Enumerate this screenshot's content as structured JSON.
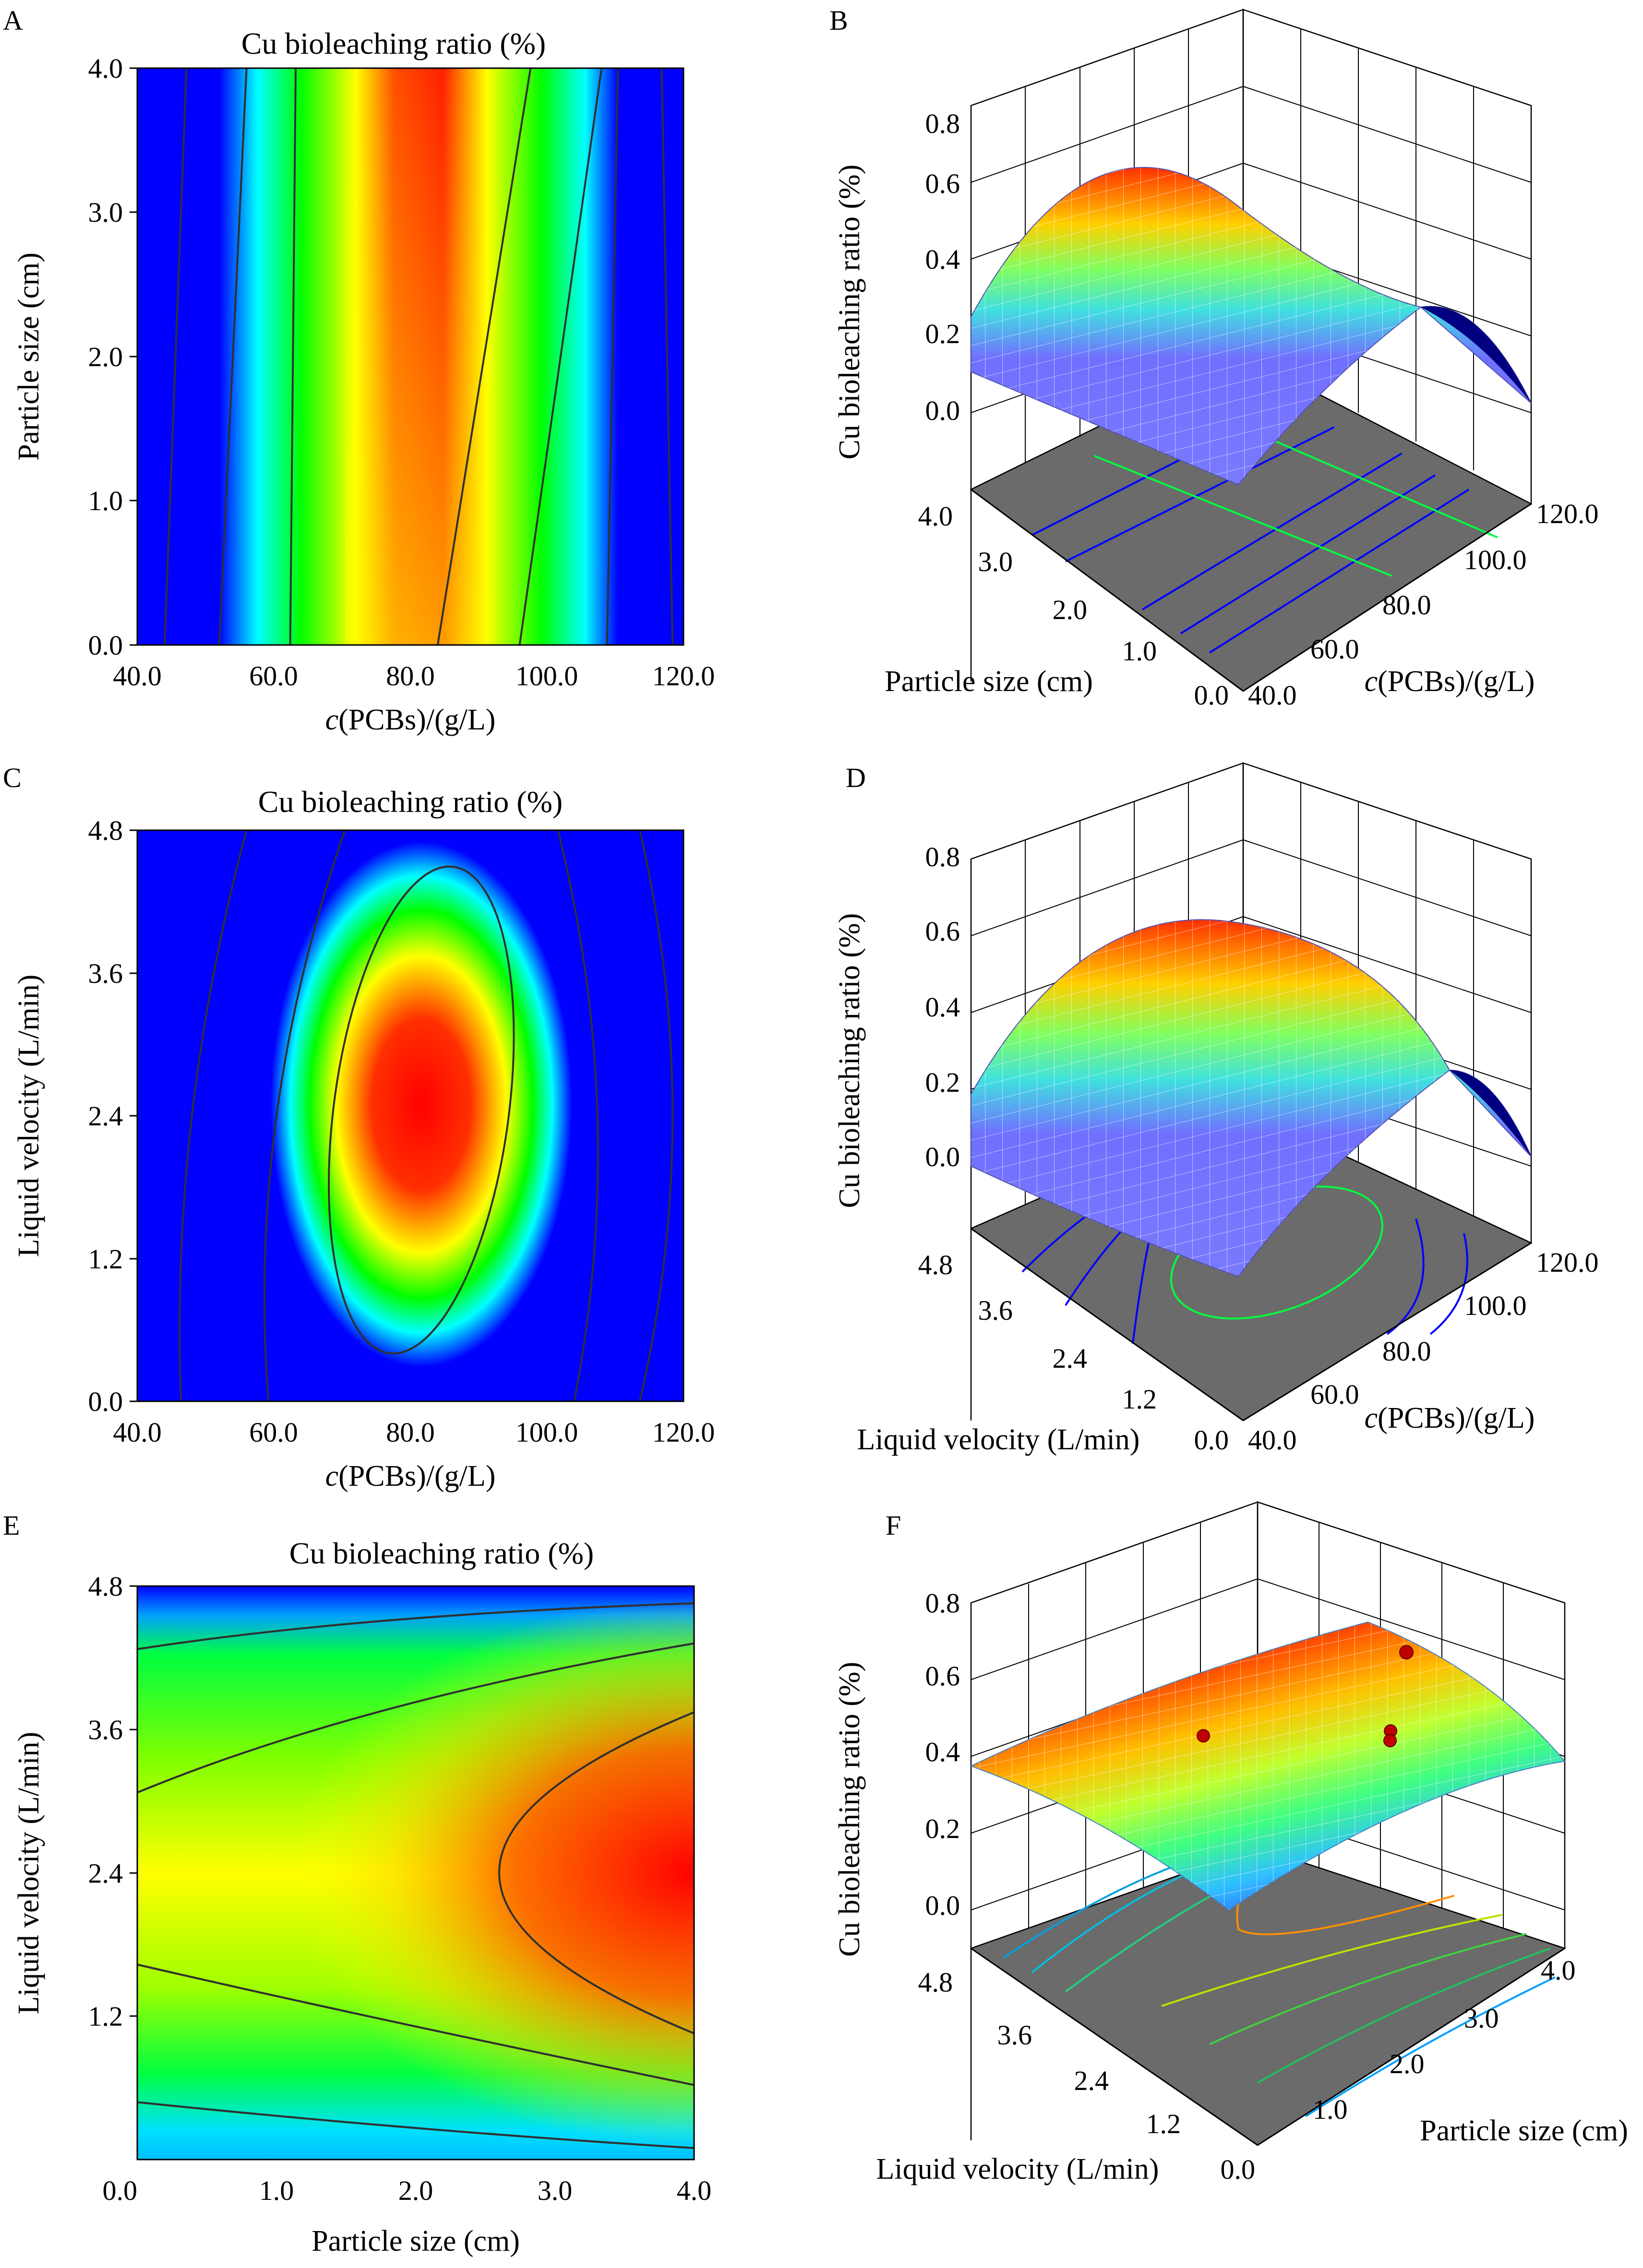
{
  "figure": {
    "panels": [
      "A",
      "B",
      "C",
      "D",
      "E",
      "F"
    ]
  },
  "colormap": [
    "#0000ff",
    "#00ffff",
    "#00ff00",
    "#ffff00",
    "#ff0000"
  ],
  "surface_palette": {
    "floor": "#6b6b6b",
    "dots": "#c00000"
  },
  "chart_data": [
    {
      "panel": "A",
      "type": "heatmap",
      "title": "Cu bioleaching ratio (%)",
      "xlabel_italic": "c",
      "xlabel_rest": "(PCBs)/(g/L)",
      "ylabel": "Particle size (cm)",
      "xlim": [
        40,
        120
      ],
      "ylim": [
        0,
        4
      ],
      "xticks": [
        "40.0",
        "60.0",
        "80.0",
        "100.0",
        "120.0"
      ],
      "yticks": [
        "0.0",
        "1.0",
        "2.0",
        "3.0",
        "4.0"
      ],
      "peak": {
        "x": 83,
        "y": 4.0
      }
    },
    {
      "panel": "B",
      "type": "surface",
      "zlabel": "Cu bioleaching ratio (%)",
      "xlabel": "Particle size (cm)",
      "ylabel_italic": "c",
      "ylabel_rest": "(PCBs)/(g/L)",
      "zticks": [
        "0.0",
        "0.2",
        "0.4",
        "0.6",
        "0.8"
      ],
      "xticks": [
        "0.0",
        "1.0",
        "2.0",
        "3.0",
        "4.0"
      ],
      "yticks": [
        "40.0",
        "60.0",
        "80.0",
        "100.0",
        "120.0"
      ],
      "zlim": [
        0,
        0.8
      ]
    },
    {
      "panel": "C",
      "type": "heatmap",
      "title": "Cu bioleaching ratio (%)",
      "xlabel_italic": "c",
      "xlabel_rest": "(PCBs)/(g/L)",
      "ylabel": "Liquid velocity (L/min)",
      "xlim": [
        40,
        120
      ],
      "ylim": [
        0,
        4.8
      ],
      "xticks": [
        "40.0",
        "60.0",
        "80.0",
        "100.0",
        "120.0"
      ],
      "yticks": [
        "0.0",
        "1.2",
        "2.4",
        "3.6",
        "4.8"
      ],
      "peak": {
        "x": 82,
        "y": 2.5
      }
    },
    {
      "panel": "D",
      "type": "surface",
      "zlabel": "Cu bioleaching ratio (%)",
      "xlabel": "Liquid velocity (L/min)",
      "ylabel_italic": "c",
      "ylabel_rest": "(PCBs)/(g/L)",
      "zticks": [
        "0.0",
        "0.2",
        "0.4",
        "0.6",
        "0.8"
      ],
      "xticks": [
        "0.0",
        "1.2",
        "2.4",
        "3.6",
        "4.8"
      ],
      "yticks": [
        "40.0",
        "60.0",
        "80.0",
        "100.0",
        "120.0"
      ],
      "zlim": [
        0,
        0.8
      ]
    },
    {
      "panel": "E",
      "type": "heatmap",
      "title": "Cu bioleaching ratio (%)",
      "xlabel": "Particle size (cm)",
      "ylabel": "Liquid velocity (L/min)",
      "xlim": [
        0,
        4
      ],
      "ylim": [
        0,
        4.8
      ],
      "xticks": [
        "0.0",
        "1.0",
        "2.0",
        "3.0",
        "4.0"
      ],
      "yticks": [
        "1.2",
        "2.4",
        "3.6",
        "4.8"
      ],
      "peak": {
        "x": 4.0,
        "y": 2.4
      }
    },
    {
      "panel": "F",
      "type": "surface",
      "zlabel": "Cu bioleaching ratio (%)",
      "xlabel": "Liquid velocity (L/min)",
      "ylabel": "Particle size (cm)",
      "zticks": [
        "0.0",
        "0.2",
        "0.4",
        "0.6",
        "0.8"
      ],
      "xticks": [
        "0.0",
        "1.2",
        "2.4",
        "3.6",
        "4.8"
      ],
      "yticks": [
        "1.0",
        "2.0",
        "3.0",
        "4.0"
      ],
      "zlim": [
        0,
        0.8
      ]
    }
  ]
}
